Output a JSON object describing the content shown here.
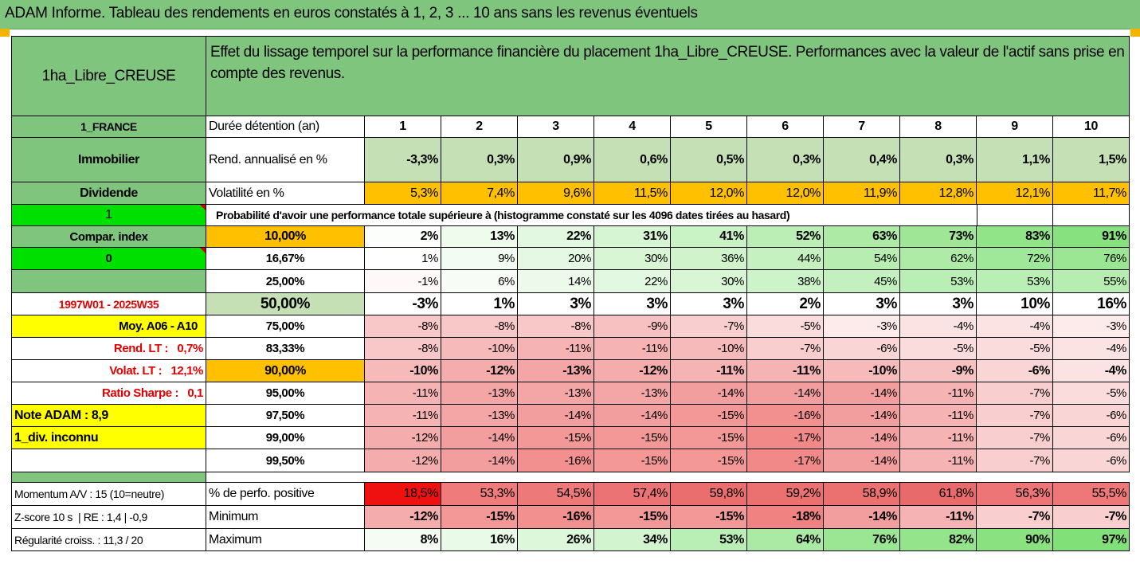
{
  "title": "ADAM Informe. Tableau des rendements en euros constatés à 1, 2, 3 ... 10 ans sans les revenus éventuels",
  "header": {
    "asset_name": "1ha_Libre_CREUSE",
    "description": "Effet du lissage temporel sur la performance financière du placement 1ha_Libre_CREUSE. Performances avec la valeur de l'actif sans prise en compte des revenus."
  },
  "side": {
    "country": "1_FRANCE",
    "category": "Immobilier",
    "dividend_label": "Dividende",
    "dividend_value": "1",
    "compar_index_label": "Compar. index",
    "compar_index_value": "0",
    "period": "1997W01 - 2025W35",
    "moy": "Moy. A06 - A10",
    "rend_lt": "Rend. LT :   0,7%",
    "volat_lt": "Volat. LT :   12,1%",
    "sharpe": "Ratio Sharpe :   0,1",
    "note": "Note ADAM : 8,9",
    "div": "1_div. inconnu",
    "momentum": "Momentum A/V : 15 (10=neutre)",
    "zscore": "Z-score 10 s  | RE : 1,4 | -0,9",
    "regularite": "Régularité croiss. : 11,3 / 20"
  },
  "labels": {
    "duree": "Durée détention (an)",
    "rend": "Rend. annualisé en %",
    "volat": "Volatilité en %",
    "proba": "Probabilité d'avoir une performance totale supérieure à (histogramme constaté sur les 4096 dates tirées au hasard)",
    "perf_pos": "% de perfo. positive",
    "minimum": "Minimum",
    "maximum": "Maximum"
  },
  "years": [
    "1",
    "2",
    "3",
    "4",
    "5",
    "6",
    "7",
    "8",
    "9",
    "10"
  ],
  "rend_values": [
    "-3,3%",
    "0,3%",
    "0,9%",
    "0,6%",
    "0,5%",
    "0,3%",
    "0,4%",
    "0,3%",
    "1,1%",
    "1,5%"
  ],
  "volat_values": [
    "5,3%",
    "7,4%",
    "9,6%",
    "11,5%",
    "12,0%",
    "12,0%",
    "11,9%",
    "12,8%",
    "12,1%",
    "11,7%"
  ],
  "percentile_rows": [
    {
      "pct": "10,00%",
      "values": [
        "2%",
        "13%",
        "22%",
        "31%",
        "41%",
        "52%",
        "63%",
        "73%",
        "83%",
        "91%"
      ],
      "shade": [
        0.02,
        0.13,
        0.22,
        0.31,
        0.41,
        0.52,
        0.63,
        0.73,
        0.83,
        0.91
      ]
    },
    {
      "pct": "16,67%",
      "values": [
        "1%",
        "9%",
        "20%",
        "30%",
        "36%",
        "44%",
        "54%",
        "62%",
        "72%",
        "76%"
      ],
      "shade": [
        0.01,
        0.09,
        0.2,
        0.3,
        0.36,
        0.44,
        0.54,
        0.62,
        0.72,
        0.76
      ]
    },
    {
      "pct": "25,00%",
      "values": [
        "-1%",
        "6%",
        "14%",
        "22%",
        "30%",
        "38%",
        "45%",
        "53%",
        "53%",
        "55%"
      ],
      "shade": [
        -0.01,
        0.06,
        0.14,
        0.22,
        0.3,
        0.38,
        0.45,
        0.53,
        0.53,
        0.55
      ]
    },
    {
      "pct": "50,00%",
      "values": [
        "-3%",
        "1%",
        "3%",
        "3%",
        "3%",
        "2%",
        "3%",
        "3%",
        "10%",
        "16%"
      ],
      "shade": [
        -0.03,
        0.01,
        0.03,
        0.03,
        0.03,
        0.02,
        0.03,
        0.03,
        0.1,
        0.16
      ]
    },
    {
      "pct": "75,00%",
      "values": [
        "-8%",
        "-8%",
        "-8%",
        "-9%",
        "-7%",
        "-5%",
        "-3%",
        "-4%",
        "-4%",
        "-3%"
      ],
      "shade": [
        -0.08,
        -0.08,
        -0.08,
        -0.09,
        -0.07,
        -0.05,
        -0.03,
        -0.04,
        -0.04,
        -0.03
      ]
    },
    {
      "pct": "83,33%",
      "values": [
        "-8%",
        "-10%",
        "-11%",
        "-11%",
        "-10%",
        "-7%",
        "-6%",
        "-5%",
        "-5%",
        "-4%"
      ],
      "shade": [
        -0.08,
        -0.1,
        -0.11,
        -0.11,
        -0.1,
        -0.07,
        -0.06,
        -0.05,
        -0.05,
        -0.04
      ]
    },
    {
      "pct": "90,00%",
      "values": [
        "-10%",
        "-12%",
        "-13%",
        "-12%",
        "-11%",
        "-11%",
        "-10%",
        "-9%",
        "-6%",
        "-4%"
      ],
      "shade": [
        -0.1,
        -0.12,
        -0.13,
        -0.12,
        -0.11,
        -0.11,
        -0.1,
        -0.09,
        -0.06,
        -0.04
      ]
    },
    {
      "pct": "95,00%",
      "values": [
        "-11%",
        "-13%",
        "-13%",
        "-13%",
        "-14%",
        "-14%",
        "-14%",
        "-11%",
        "-7%",
        "-5%"
      ],
      "shade": [
        -0.11,
        -0.13,
        -0.13,
        -0.13,
        -0.14,
        -0.14,
        -0.14,
        -0.11,
        -0.07,
        -0.05
      ]
    },
    {
      "pct": "97,50%",
      "values": [
        "-11%",
        "-13%",
        "-14%",
        "-14%",
        "-15%",
        "-16%",
        "-14%",
        "-11%",
        "-7%",
        "-6%"
      ],
      "shade": [
        -0.11,
        -0.13,
        -0.14,
        -0.14,
        -0.15,
        -0.16,
        -0.14,
        -0.11,
        -0.07,
        -0.06
      ]
    },
    {
      "pct": "99,00%",
      "values": [
        "-12%",
        "-14%",
        "-15%",
        "-15%",
        "-15%",
        "-17%",
        "-14%",
        "-11%",
        "-7%",
        "-6%"
      ],
      "shade": [
        -0.12,
        -0.14,
        -0.15,
        -0.15,
        -0.15,
        -0.17,
        -0.14,
        -0.11,
        -0.07,
        -0.06
      ]
    },
    {
      "pct": "99,50%",
      "values": [
        "-12%",
        "-14%",
        "-16%",
        "-15%",
        "-15%",
        "-17%",
        "-14%",
        "-11%",
        "-7%",
        "-6%"
      ],
      "shade": [
        -0.12,
        -0.14,
        -0.16,
        -0.15,
        -0.15,
        -0.17,
        -0.14,
        -0.11,
        -0.07,
        -0.06
      ]
    }
  ],
  "perf_pos_values": [
    "18,5%",
    "53,3%",
    "54,5%",
    "57,4%",
    "59,8%",
    "59,2%",
    "58,9%",
    "61,8%",
    "56,3%",
    "55,5%"
  ],
  "perf_pos_shade": [
    0.185,
    0.533,
    0.545,
    0.574,
    0.598,
    0.592,
    0.589,
    0.618,
    0.563,
    0.555
  ],
  "min_values": [
    "-12%",
    "-15%",
    "-16%",
    "-15%",
    "-15%",
    "-18%",
    "-14%",
    "-11%",
    "-7%",
    "-7%"
  ],
  "min_shade": [
    -0.12,
    -0.15,
    -0.16,
    -0.15,
    -0.15,
    -0.18,
    -0.14,
    -0.11,
    -0.07,
    -0.07
  ],
  "max_values": [
    "8%",
    "16%",
    "26%",
    "34%",
    "53%",
    "64%",
    "76%",
    "82%",
    "90%",
    "97%"
  ],
  "max_shade": [
    0.08,
    0.16,
    0.26,
    0.34,
    0.53,
    0.64,
    0.76,
    0.82,
    0.9,
    0.97
  ],
  "colors": {
    "header_green": "#7fc57e",
    "light_green": "#c5e0b4",
    "orange": "#ffc000",
    "yellow": "#ffff00",
    "bright_green": "#00e000",
    "red_text": "#e30000"
  }
}
